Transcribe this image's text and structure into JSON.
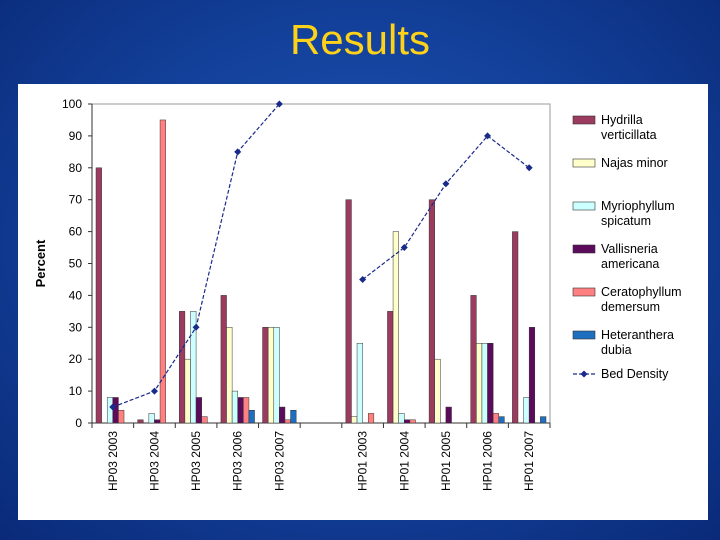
{
  "slide": {
    "title": "Results"
  },
  "chart_data": {
    "type": "bar",
    "title": "",
    "ylabel": "Percent",
    "xlabel": "",
    "ylim": [
      0,
      100
    ],
    "yticks": [
      0,
      10,
      20,
      30,
      40,
      50,
      60,
      70,
      80,
      90,
      100
    ],
    "grid": false,
    "legend_position": "right",
    "categories": [
      "HP03 2003",
      "HP03 2004",
      "HP03 2005",
      "HP03 2006",
      "HP03 2007",
      "",
      "HP01 2003",
      "HP01 2004",
      "HP01 2005",
      "HP01 2006",
      "HP01 2007"
    ],
    "series": [
      {
        "name": "Hydrilla verticillata",
        "legend_lines": [
          "Hydrilla",
          "verticillata"
        ],
        "color": "#9b3b5f",
        "values": [
          80,
          1,
          35,
          40,
          30,
          null,
          70,
          35,
          70,
          40,
          60
        ]
      },
      {
        "name": "Najas minor",
        "legend_lines": [
          "Najas minor"
        ],
        "color": "#ffffcc",
        "values": [
          0,
          0,
          20,
          30,
          30,
          null,
          2,
          60,
          20,
          25,
          0
        ]
      },
      {
        "name": "Myriophyllum spicatum",
        "legend_lines": [
          "Myriophyllum",
          "spicatum"
        ],
        "color": "#ccffff",
        "values": [
          8,
          3,
          35,
          10,
          30,
          null,
          25,
          3,
          0,
          25,
          8
        ]
      },
      {
        "name": "Vallisneria americana",
        "legend_lines": [
          "Vallisneria",
          "americana"
        ],
        "color": "#5c0a5c",
        "values": [
          8,
          1,
          8,
          8,
          5,
          null,
          0,
          1,
          5,
          25,
          30
        ]
      },
      {
        "name": "Ceratophyllum demersum",
        "legend_lines": [
          "Ceratophyllum",
          "demersum"
        ],
        "color": "#ff8080",
        "values": [
          4,
          95,
          2,
          8,
          1,
          null,
          3,
          1,
          0,
          3,
          0
        ]
      },
      {
        "name": "Heteranthera dubia",
        "legend_lines": [
          "Heteranthera",
          "dubia"
        ],
        "color": "#1f6fc0",
        "values": [
          0,
          0,
          0,
          4,
          4,
          null,
          0,
          0,
          0,
          2,
          2
        ]
      }
    ],
    "line_series": {
      "name": "Bed Density",
      "legend_lines": [
        "Bed Density"
      ],
      "color": "#1a2a8a",
      "style": "dashed",
      "values": [
        5,
        10,
        30,
        85,
        100,
        null,
        45,
        55,
        75,
        90,
        80
      ]
    }
  }
}
